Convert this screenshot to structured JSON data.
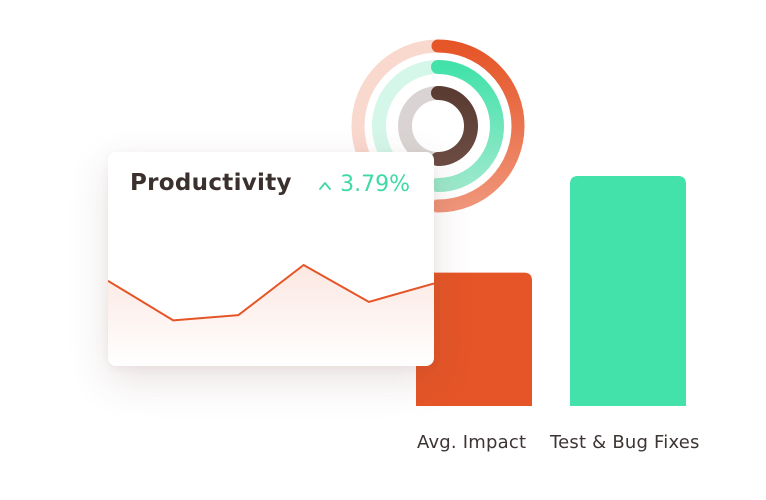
{
  "card": {
    "title": "Productivity",
    "delta": "3.79%",
    "delta_direction": "up"
  },
  "colors": {
    "orange": "#e55527",
    "green": "#43e2ab",
    "dark": "#5a3c33",
    "text": "#3d3533"
  },
  "icons": {
    "delta": "caret-up-icon"
  },
  "chart_data": [
    {
      "type": "line",
      "title": "Productivity",
      "x": [
        0,
        1,
        2,
        3,
        4,
        5
      ],
      "values": [
        60,
        30,
        34,
        72,
        44,
        58
      ],
      "ylim": [
        0,
        100
      ]
    },
    {
      "type": "bar",
      "categories": [
        "Avg. Impact",
        "Test & Bug Fixes"
      ],
      "values": [
        58,
        100
      ],
      "ylim": [
        0,
        100
      ],
      "colors": [
        "#e55527",
        "#43e2ab"
      ]
    },
    {
      "type": "pie",
      "series": [
        {
          "value": 0.5,
          "color": "#e55527"
        },
        {
          "value": 0.5,
          "color": "#43e2ab"
        },
        {
          "value": 0.5,
          "color": "#5a3c33"
        }
      ]
    }
  ]
}
